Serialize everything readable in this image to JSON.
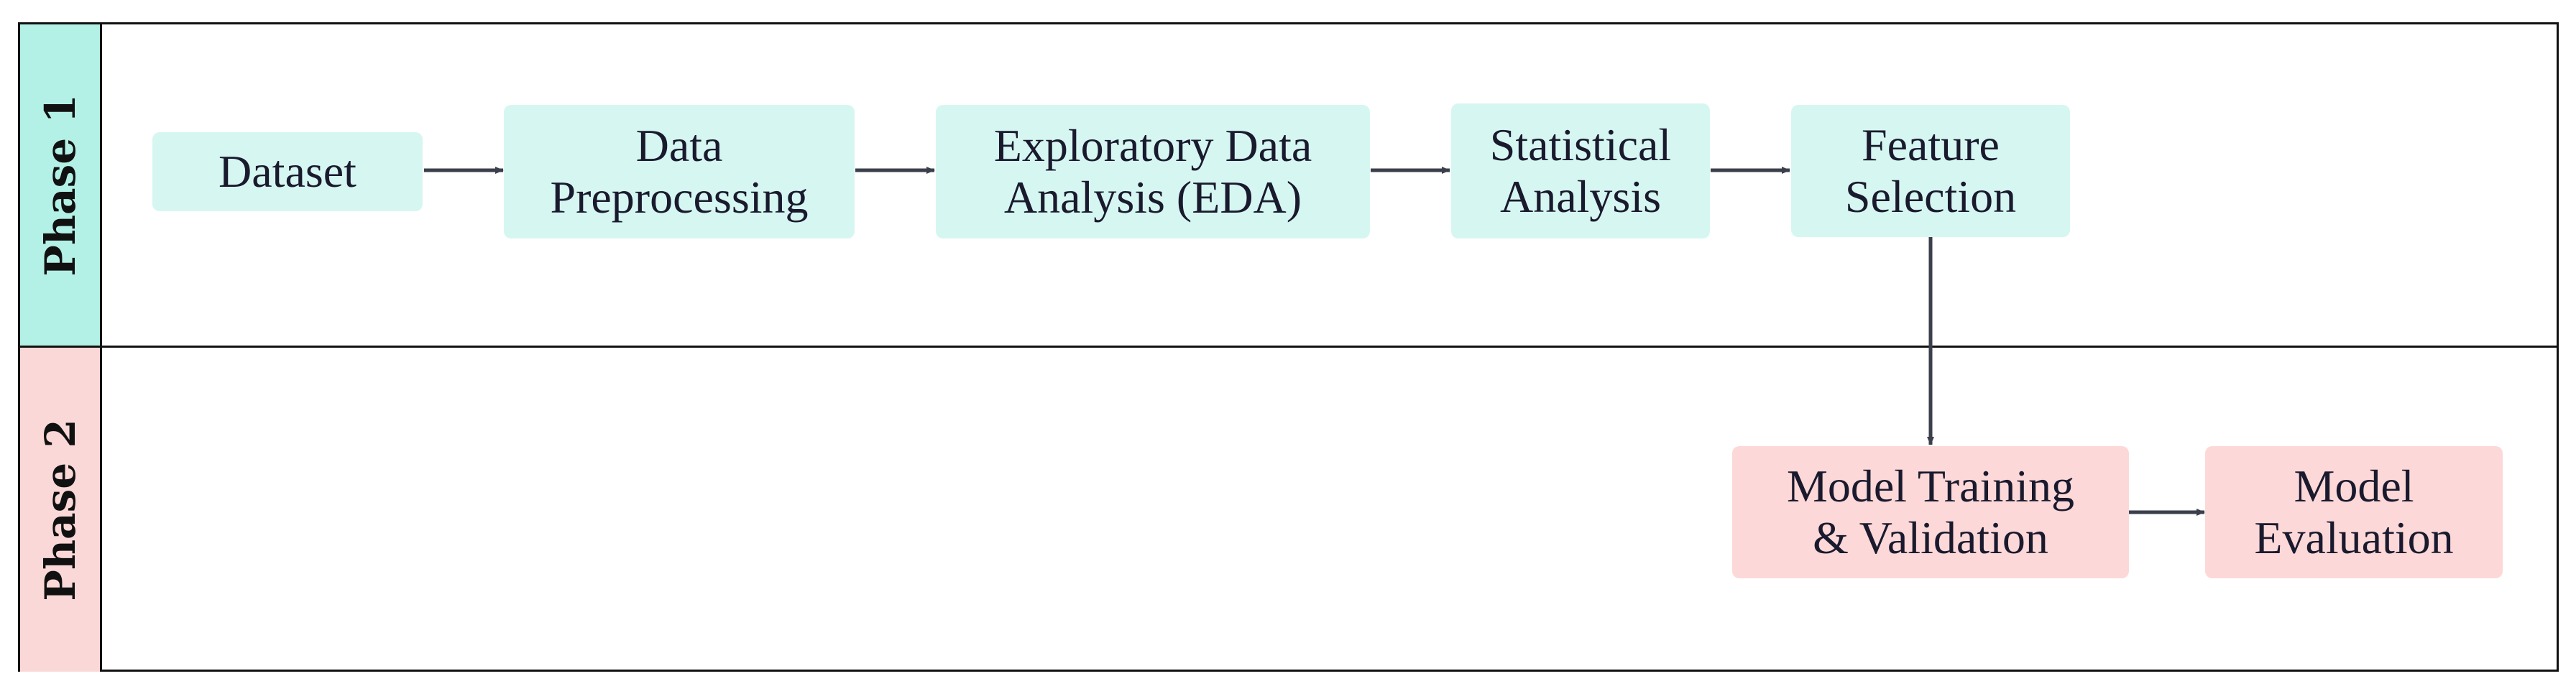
{
  "lanes": [
    {
      "label": "Phase 1",
      "color": "#b3f0e6"
    },
    {
      "label": "Phase 2",
      "color": "#fbd8d8"
    }
  ],
  "nodes": {
    "dataset": {
      "lines": [
        "Dataset"
      ]
    },
    "preprocessing": {
      "lines": [
        "Data",
        "Preprocessing"
      ]
    },
    "eda": {
      "lines": [
        "Exploratory Data",
        "Analysis (EDA)"
      ]
    },
    "statistical": {
      "lines": [
        "Statistical",
        "Analysis"
      ]
    },
    "feature": {
      "lines": [
        "Feature",
        "Selection"
      ]
    },
    "training": {
      "lines": [
        "Model Training",
        "& Validation"
      ]
    },
    "evaluation": {
      "lines": [
        "Model",
        "Evaluation"
      ]
    }
  },
  "edges": [
    {
      "from": "Dataset",
      "to": "Data Preprocessing"
    },
    {
      "from": "Data Preprocessing",
      "to": "Exploratory Data Analysis (EDA)"
    },
    {
      "from": "Exploratory Data Analysis (EDA)",
      "to": "Statistical Analysis"
    },
    {
      "from": "Statistical Analysis",
      "to": "Feature Selection"
    },
    {
      "from": "Feature Selection",
      "to": "Model Training & Validation"
    },
    {
      "from": "Model Training & Validation",
      "to": "Model Evaluation"
    }
  ],
  "colors": {
    "phase1_node": "#d6f7f1",
    "phase2_node": "#fdd8d8",
    "arrow": "#3a3f4b",
    "border": "#111111"
  }
}
